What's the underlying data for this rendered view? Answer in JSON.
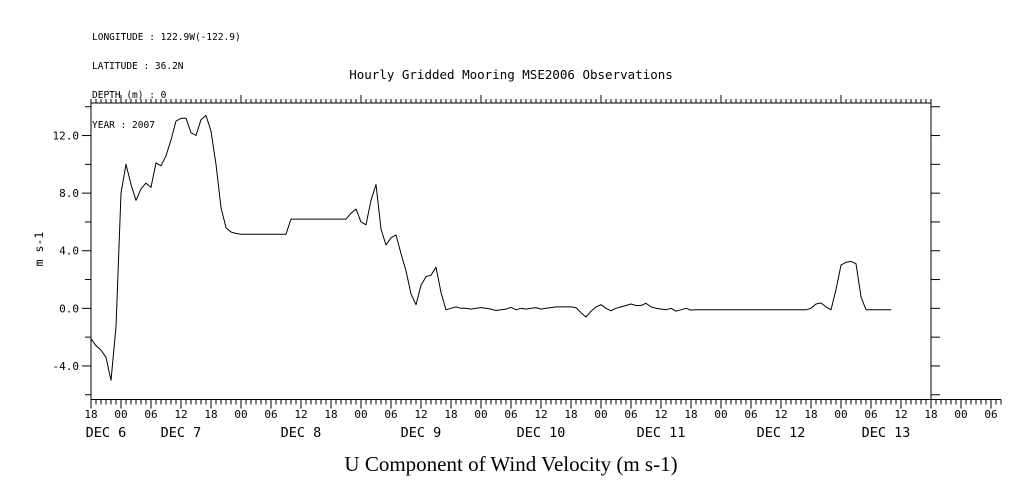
{
  "header": {
    "metadata_lines": [
      "LONGITUDE : 122.9W(-122.9)",
      "LATITUDE : 36.2N",
      "DEPTH (m) : 0",
      "YEAR : 2007"
    ],
    "title": "Hourly Gridded Mooring MSE2006 Observations"
  },
  "footer": {
    "axis_title": "U Component of Wind Velocity (m s-1)"
  },
  "chart_data": {
    "type": "line",
    "title": "Hourly Gridded Mooring MSE2006 Observations",
    "xlabel": "",
    "ylabel": "m s-1",
    "line_color": "#000000",
    "background": "#ffffff",
    "x_axis": {
      "span_hours": 168,
      "overhang_hours": 14,
      "minor_tick_step_hours": 1,
      "label_step_hours": 6,
      "hour_labels": [
        "18",
        "00",
        "06",
        "12",
        "18",
        "00",
        "06",
        "12",
        "18",
        "00",
        "06",
        "12",
        "18",
        "00",
        "06",
        "12",
        "18",
        "00",
        "06",
        "12",
        "18",
        "00",
        "06",
        "12",
        "18",
        "00",
        "06",
        "12",
        "18",
        "00",
        "06"
      ],
      "date_labels": [
        {
          "label": "DEC 6",
          "center_hour": 3
        },
        {
          "label": "DEC 7",
          "center_hour": 18
        },
        {
          "label": "DEC 8",
          "center_hour": 42
        },
        {
          "label": "DEC 9",
          "center_hour": 66
        },
        {
          "label": "DEC 10",
          "center_hour": 90
        },
        {
          "label": "DEC 11",
          "center_hour": 114
        },
        {
          "label": "DEC 12",
          "center_hour": 138
        },
        {
          "label": "DEC 13",
          "center_hour": 159
        }
      ]
    },
    "y_axis": {
      "ylim": [
        -6.33,
        14.26
      ],
      "major_ticks": [
        {
          "value": -4,
          "label": "-4.0"
        },
        {
          "value": 0,
          "label": "0.0"
        },
        {
          "value": 4,
          "label": "4.0"
        },
        {
          "value": 8,
          "label": "8.0"
        },
        {
          "value": 12,
          "label": "12.0"
        }
      ],
      "minor_tick_values": [
        -6,
        -2,
        2,
        6,
        10,
        14
      ],
      "right_tick_values": [
        -6,
        -4,
        -2,
        0,
        2,
        4,
        6,
        8,
        10,
        12,
        14
      ]
    },
    "series": [
      {
        "name": "u-component-wind",
        "start_hour": 0,
        "step_hours": 1,
        "values": [
          -2.1,
          -2.6,
          -2.9,
          -3.4,
          -5.0,
          -1.3,
          8.0,
          10.0,
          8.6,
          7.5,
          8.3,
          8.7,
          8.4,
          10.1,
          9.9,
          10.6,
          11.7,
          13.0,
          13.2,
          13.2,
          12.2,
          12.0,
          13.1,
          13.4,
          12.3,
          10.0,
          7.0,
          5.6,
          5.3,
          5.2,
          5.15,
          5.15,
          5.15,
          5.15,
          5.15,
          5.15,
          5.15,
          5.15,
          5.15,
          5.15,
          6.2,
          6.2,
          6.2,
          6.2,
          6.2,
          6.2,
          6.2,
          6.2,
          6.2,
          6.2,
          6.2,
          6.2,
          6.6,
          6.9,
          6.0,
          5.8,
          7.5,
          8.6,
          5.5,
          4.4,
          4.9,
          5.1,
          3.8,
          2.6,
          1.0,
          0.25,
          1.6,
          2.2,
          2.3,
          2.85,
          1.1,
          -0.1,
          0.0,
          0.1,
          0.0,
          0.0,
          -0.05,
          0.0,
          0.05,
          0.0,
          -0.05,
          -0.15,
          -0.1,
          -0.05,
          0.07,
          -0.1,
          0.0,
          -0.05,
          0.0,
          0.05,
          -0.05,
          0.0,
          0.05,
          0.1,
          0.1,
          0.1,
          0.1,
          0.05,
          -0.3,
          -0.6,
          -0.2,
          0.1,
          0.25,
          0.0,
          -0.17,
          0.0,
          0.1,
          0.2,
          0.3,
          0.2,
          0.2,
          0.35,
          0.1,
          0.0,
          -0.05,
          -0.1,
          0.0,
          -0.2,
          -0.1,
          0.0,
          -0.12,
          -0.1,
          -0.1,
          -0.1,
          -0.1,
          -0.1,
          -0.1,
          -0.1,
          -0.1,
          -0.1,
          -0.1,
          -0.1,
          -0.1,
          -0.1,
          -0.1,
          -0.1,
          -0.1,
          -0.1,
          -0.1,
          -0.1,
          -0.1,
          -0.1,
          -0.1,
          -0.1,
          0.0,
          0.3,
          0.37,
          0.1,
          -0.1,
          1.3,
          3.0,
          3.2,
          3.26,
          3.1,
          0.8,
          -0.1,
          -0.1,
          -0.1,
          -0.1,
          -0.1,
          -0.1
        ]
      }
    ]
  }
}
